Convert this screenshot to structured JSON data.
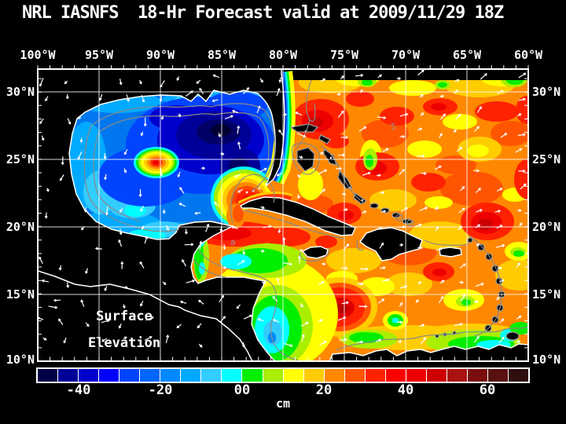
{
  "title": "NRL IASNFS  18-Hr Forecast valid at 2009/11/29 18Z",
  "colors": {
    "background": "#000000",
    "text": "#ffffff",
    "grid": "#ffffff",
    "coastline": "#ffffff",
    "bathymetry_contour": "#8a8a8a",
    "land": "#000000",
    "arrow": "#ffffff"
  },
  "axes": {
    "longitude_labels": [
      "100°W",
      "95°W",
      "90°W",
      "85°W",
      "80°W",
      "75°W",
      "70°W",
      "65°W",
      "60°W"
    ],
    "latitude_labels": [
      "30°N",
      "25°N",
      "20°N",
      "15°N",
      "10°N"
    ]
  },
  "map_annotation": {
    "line1": "Surface",
    "line2": "Elevation"
  },
  "contour_labels": [
    {
      "text": "5"
    },
    {
      "text": "a"
    }
  ],
  "colorbar": {
    "unit": "cm",
    "tick_labels": [
      "-40",
      "-20",
      "00",
      "20",
      "40",
      "60"
    ],
    "min_cm": -50,
    "max_cm": 70,
    "step_cm": 5,
    "colors": [
      "#000044",
      "#000099",
      "#0000cc",
      "#0000ff",
      "#0044ff",
      "#0066ff",
      "#0088ff",
      "#00aaff",
      "#33ccff",
      "#00ffff",
      "#00ee00",
      "#aaee00",
      "#ffff00",
      "#ffcc00",
      "#ff8800",
      "#ff5500",
      "#ff2200",
      "#ff0000",
      "#ee0000",
      "#cc0000",
      "#aa1111",
      "#7a0e0e",
      "#581010",
      "#2e0d0d"
    ]
  }
}
